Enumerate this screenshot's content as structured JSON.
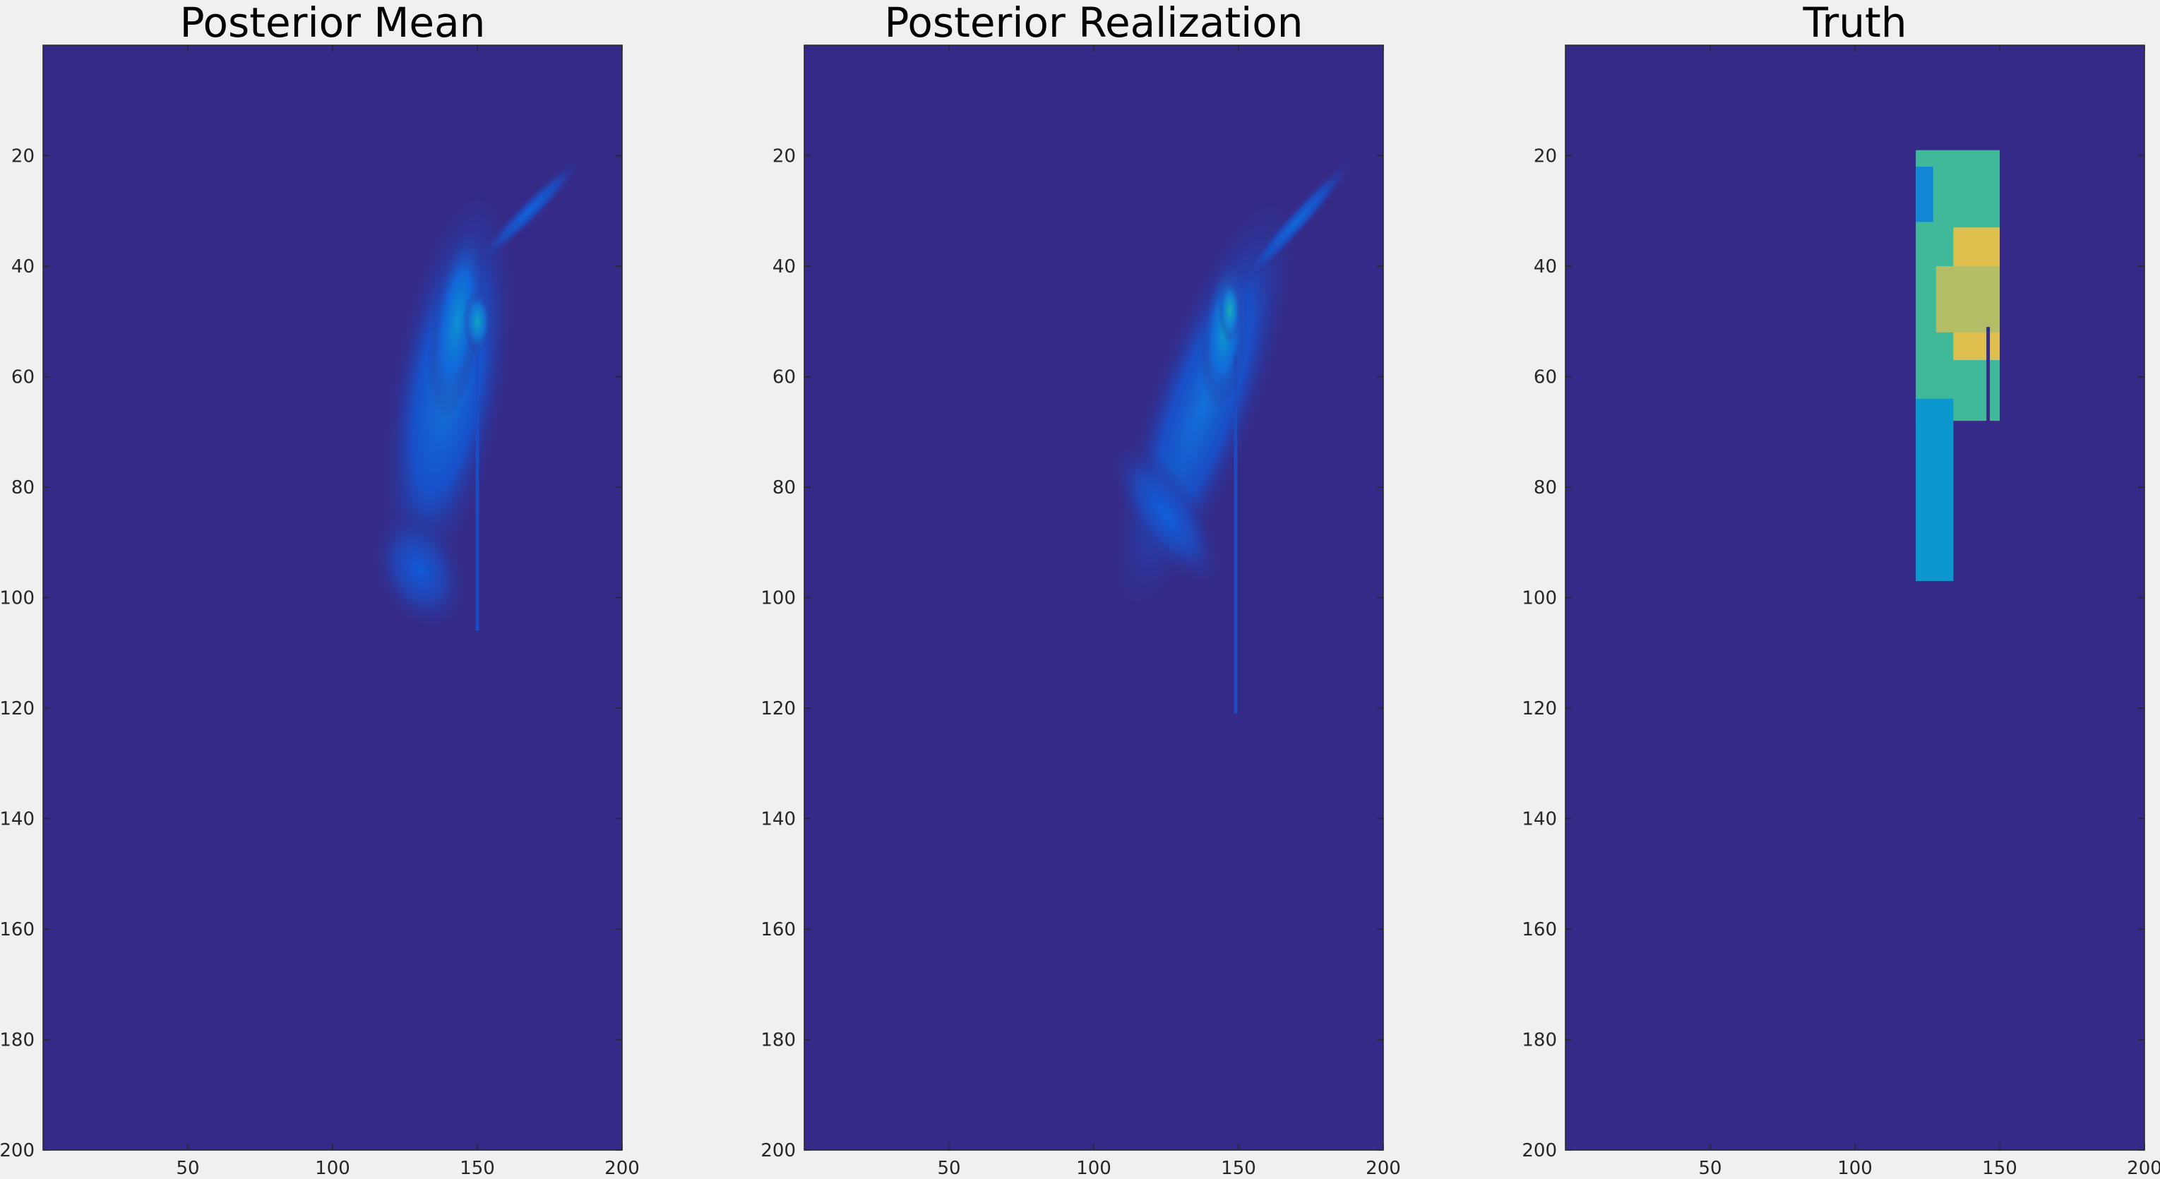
{
  "figure": {
    "background": "#f0f0f0",
    "colormap": [
      "#352a87",
      "#0f5cdd",
      "#1481d6",
      "#06a4ca",
      "#2eb7a4",
      "#87bf77",
      "#d1bb59",
      "#fec832"
    ]
  },
  "chart_data": [
    {
      "type": "heatmap",
      "title": "Posterior Mean",
      "xlim": [
        0,
        200
      ],
      "ylim": [
        0,
        200
      ],
      "x_ticks": [
        50,
        100,
        150,
        200
      ],
      "y_ticks": [
        20,
        40,
        60,
        80,
        100,
        120,
        140,
        160,
        180,
        200
      ],
      "y_reversed": true,
      "background_value": 0,
      "features": [
        {
          "kind": "blob",
          "cx": 140,
          "cy": 62,
          "rx": 21,
          "ry": 38,
          "rot": 10,
          "peak": 0.24
        },
        {
          "kind": "blob",
          "cx": 130,
          "cy": 95,
          "rx": 16,
          "ry": 12,
          "rot": -25,
          "peak": 0.14
        },
        {
          "kind": "blob",
          "cx": 143,
          "cy": 50,
          "rx": 9,
          "ry": 18,
          "rot": 8,
          "peak": 0.35
        },
        {
          "kind": "blob",
          "cx": 150,
          "cy": 50,
          "rx": 5,
          "ry": 6,
          "rot": 0,
          "peak": 0.45
        },
        {
          "kind": "blob",
          "cx": 168,
          "cy": 30,
          "rx": 4,
          "ry": 14,
          "rot": 45,
          "peak": 0.18
        },
        {
          "kind": "line",
          "x": 150,
          "y0": 56,
          "y1": 106,
          "value": 0.1
        }
      ]
    },
    {
      "type": "heatmap",
      "title": "Posterior Realization",
      "xlim": [
        0,
        200
      ],
      "ylim": [
        0,
        200
      ],
      "x_ticks": [
        50,
        100,
        150,
        200
      ],
      "y_ticks": [
        20,
        40,
        60,
        80,
        100,
        120,
        140,
        160,
        180,
        200
      ],
      "y_reversed": true,
      "background_value": 0,
      "features": [
        {
          "kind": "blob",
          "cx": 138,
          "cy": 65,
          "rx": 20,
          "ry": 42,
          "rot": 20,
          "peak": 0.22
        },
        {
          "kind": "blob",
          "cx": 125,
          "cy": 85,
          "rx": 12,
          "ry": 16,
          "rot": -35,
          "peak": 0.16
        },
        {
          "kind": "blob",
          "cx": 145,
          "cy": 52,
          "rx": 8,
          "ry": 14,
          "rot": 5,
          "peak": 0.38
        },
        {
          "kind": "blob",
          "cx": 147,
          "cy": 48,
          "rx": 4,
          "ry": 6,
          "rot": 0,
          "peak": 0.5
        },
        {
          "kind": "blob",
          "cx": 170,
          "cy": 32,
          "rx": 4,
          "ry": 16,
          "rot": 42,
          "peak": 0.2
        },
        {
          "kind": "line",
          "x": 149,
          "y0": 56,
          "y1": 121,
          "value": 0.09
        }
      ]
    },
    {
      "type": "heatmap",
      "title": "Truth",
      "xlim": [
        0,
        200
      ],
      "ylim": [
        0,
        200
      ],
      "x_ticks": [
        50,
        100,
        150,
        200
      ],
      "y_ticks": [
        20,
        40,
        60,
        80,
        100,
        120,
        140,
        160,
        180,
        200
      ],
      "y_reversed": true,
      "background_value": 0,
      "features": [
        {
          "kind": "block",
          "x0": 121,
          "x1": 150,
          "y0": 19,
          "y1": 68,
          "value": 0.6
        },
        {
          "kind": "block",
          "x0": 121,
          "x1": 134,
          "y0": 64,
          "y1": 97,
          "value": 0.38
        },
        {
          "kind": "block",
          "x0": 134,
          "x1": 150,
          "y0": 33,
          "y1": 57,
          "value": 0.9
        },
        {
          "kind": "block",
          "x0": 128,
          "x1": 150,
          "y0": 40,
          "y1": 52,
          "value": 0.8
        },
        {
          "kind": "block",
          "x0": 121,
          "x1": 127,
          "y0": 22,
          "y1": 32,
          "value": 0.3
        },
        {
          "kind": "line",
          "x": 146,
          "y0": 51,
          "y1": 69,
          "value": 0.0
        }
      ]
    }
  ]
}
